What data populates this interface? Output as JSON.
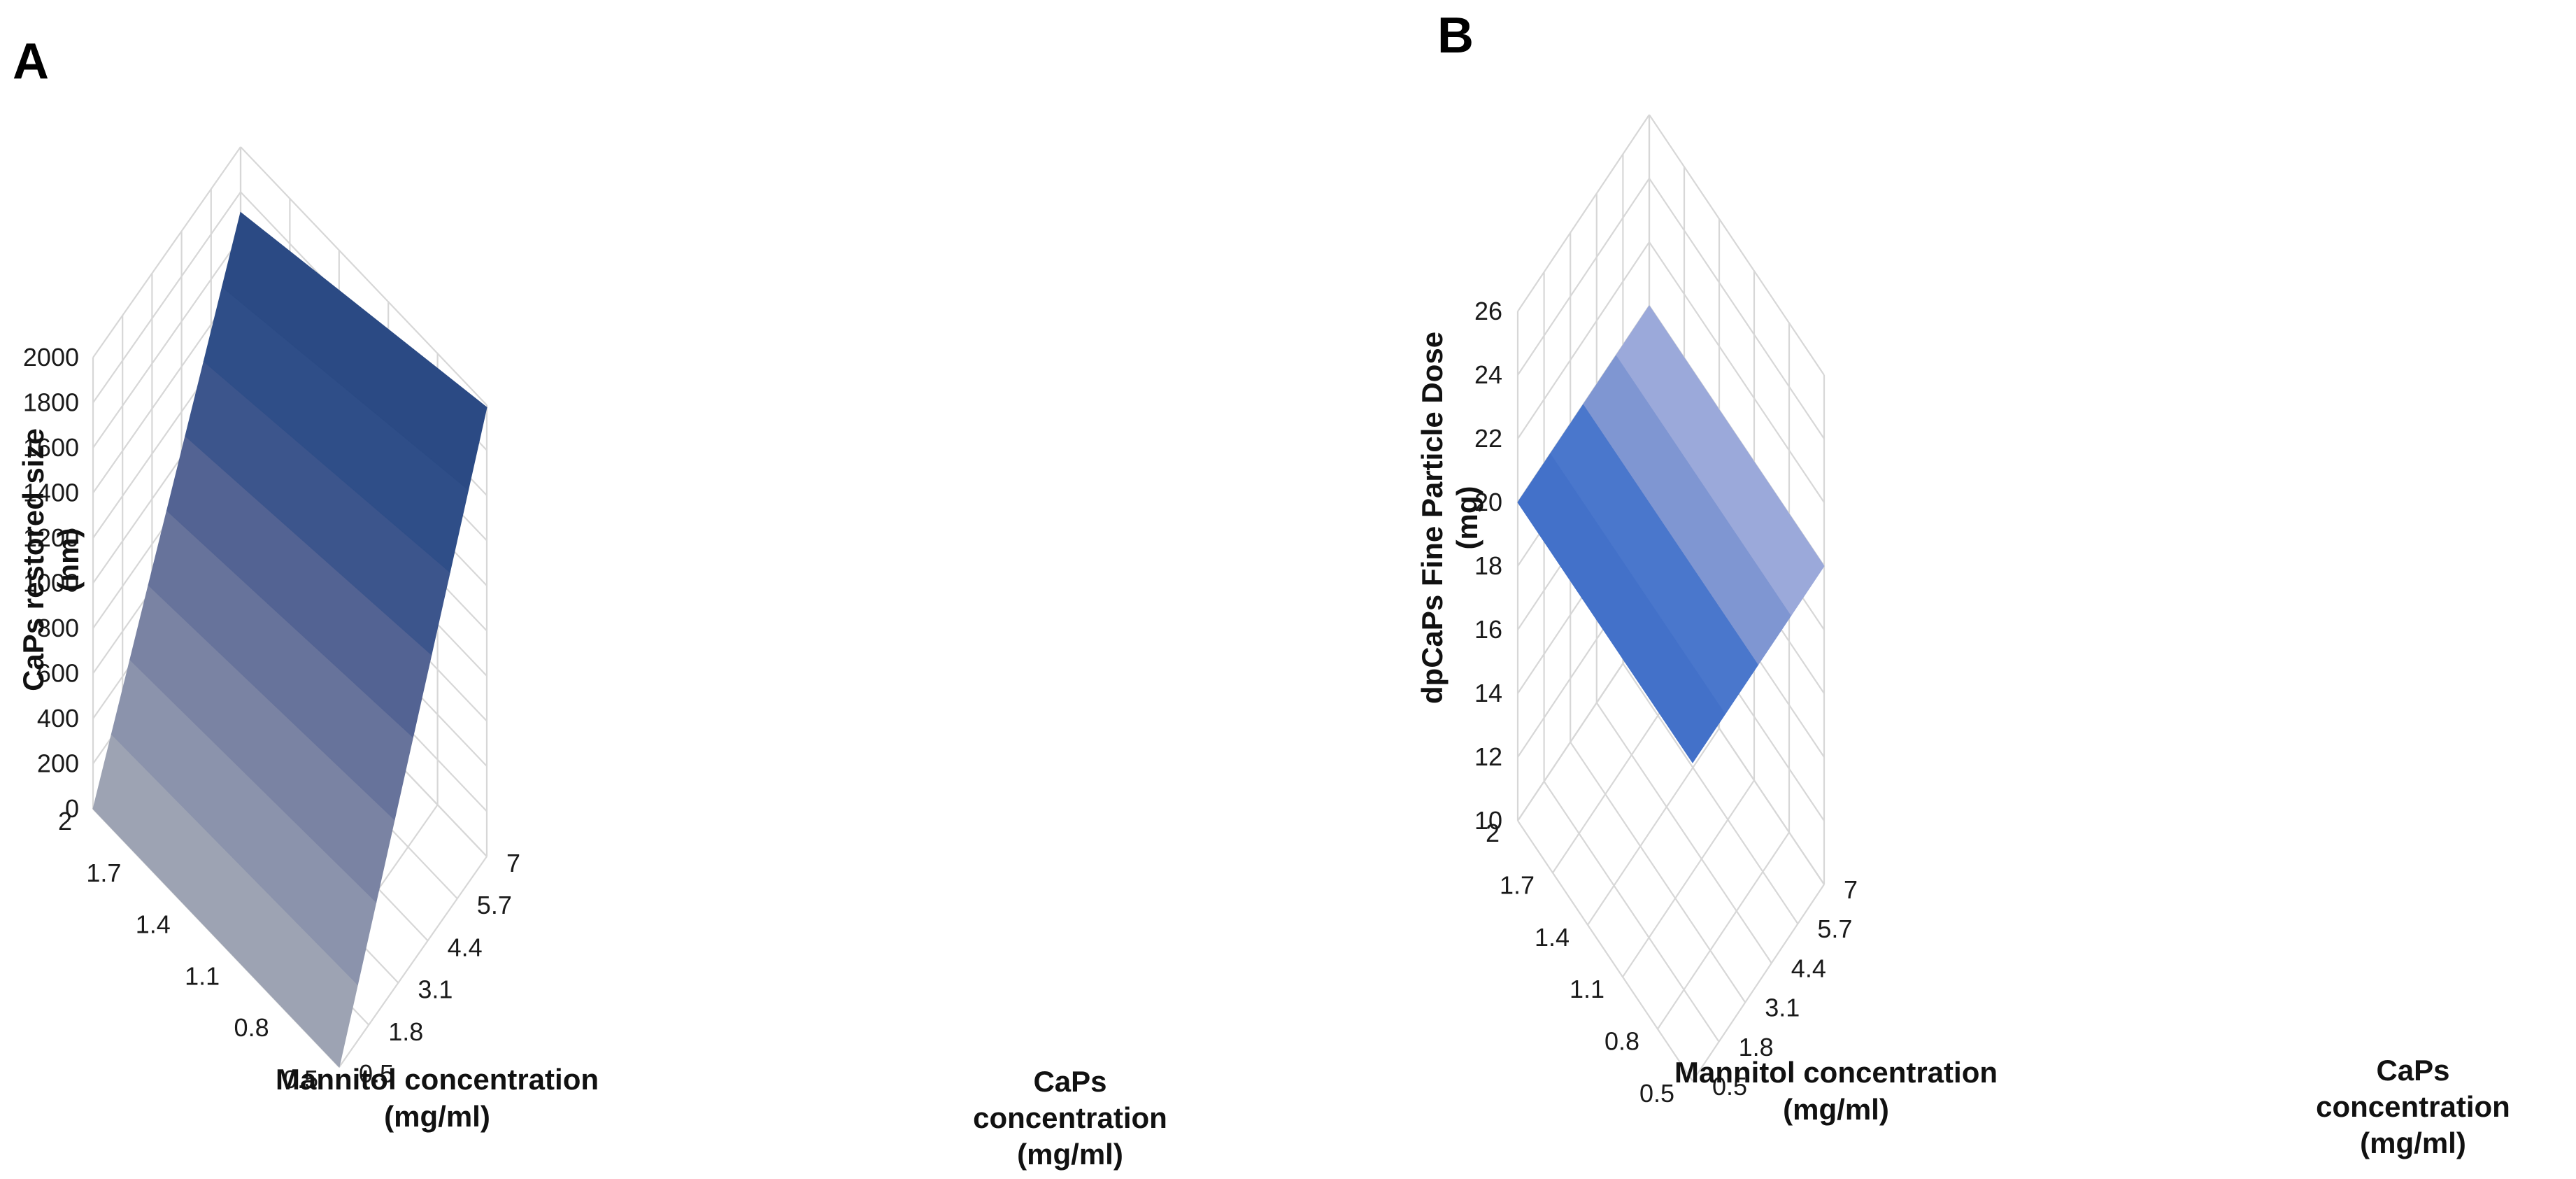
{
  "chart_data": [
    {
      "panel": "A",
      "type": "surface3d",
      "zlabel": [
        "CaPs restored size",
        "(nm)"
      ],
      "xlabel": [
        "Mannitol concentration",
        "(mg/ml)"
      ],
      "ylabel": [
        "CaPs",
        "concentration",
        "(mg/ml)"
      ],
      "x_ticks": [
        "2",
        "1.7",
        "1.4",
        "1.1",
        "0.8",
        "0.5"
      ],
      "y_ticks": [
        "0.5",
        "1.8",
        "3.1",
        "4.4",
        "5.7",
        "7"
      ],
      "z_ticks": [
        "0",
        "200",
        "400",
        "600",
        "800",
        "1000",
        "1200",
        "1400",
        "1600",
        "1800",
        "2000"
      ],
      "zlim": [
        0,
        2000
      ],
      "corner_values": {
        "mannitol_2_caps_0.5": 0,
        "mannitol_0.5_caps_0.5": 0,
        "mannitol_2_caps_7": 1710,
        "mannitol_0.5_caps_7": 1990
      },
      "band_colors": [
        "#9da3b3",
        "#8b93ac",
        "#7a83a3",
        "#67739b",
        "#536393",
        "#3c558c",
        "#2f4e88",
        "#2b4a84"
      ]
    },
    {
      "panel": "B",
      "type": "surface3d",
      "zlabel": [
        "dpCaPs Fine Particle Dose",
        "(mg)"
      ],
      "xlabel": [
        "Mannitol concentration",
        "(mg/ml)"
      ],
      "ylabel": [
        "CaPs",
        "concentration",
        "(mg/ml)"
      ],
      "x_ticks": [
        "2",
        "1.7",
        "1.4",
        "1.1",
        "0.8",
        "0.5"
      ],
      "y_ticks": [
        "0.5",
        "1.8",
        "3.1",
        "4.4",
        "5.7",
        "7"
      ],
      "z_ticks": [
        "10",
        "12",
        "14",
        "16",
        "18",
        "20",
        "22",
        "24",
        "26"
      ],
      "zlim": [
        10,
        26
      ],
      "corner_values": {
        "mannitol_2_caps_0.5": 20,
        "mannitol_0.5_caps_0.5": 20,
        "mannitol_2_caps_7": 20,
        "mannitol_0.5_caps_7": 20
      },
      "band_colors": [
        "#4371c9",
        "#4a77cc",
        "#7f96d2",
        "#9ba9da"
      ]
    }
  ]
}
